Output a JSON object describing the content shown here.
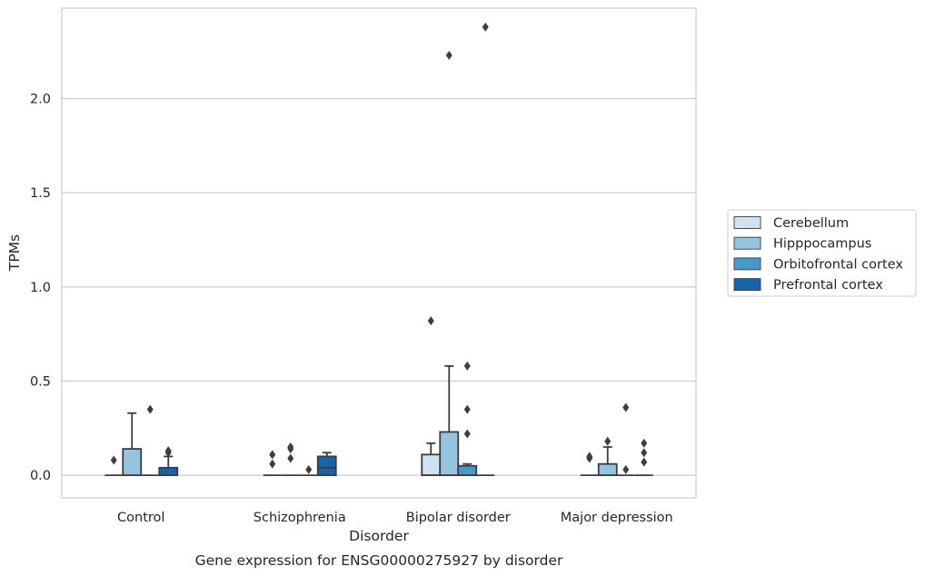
{
  "chart_data": {
    "type": "boxplot",
    "xlabel": "Disorder",
    "ylabel": "TPMs",
    "caption": "Gene expression for ENSG00000275927 by disorder",
    "categories": [
      "Control",
      "Schizophrenia",
      "Bipolar disorder",
      "Major depression"
    ],
    "ylim": [
      -0.12,
      2.48
    ],
    "yticks": [
      0.0,
      0.5,
      1.0,
      1.5,
      2.0
    ],
    "ytick_labels": [
      "0.0",
      "0.5",
      "1.0",
      "1.5",
      "2.0"
    ],
    "grid": "horizontal",
    "legend_placement": "right",
    "series": [
      {
        "name": "Cerebellum",
        "color": "#d0e1f2",
        "boxes": [
          {
            "q1": 0,
            "median": 0,
            "q3": 0,
            "whislo": 0,
            "whishi": 0,
            "fliers": [
              0.08
            ]
          },
          {
            "q1": 0,
            "median": 0,
            "q3": 0,
            "whislo": 0,
            "whishi": 0,
            "fliers": [
              0.06,
              0.11
            ]
          },
          {
            "q1": 0,
            "median": 0,
            "q3": 0.11,
            "whislo": 0,
            "whishi": 0.17,
            "fliers": [
              0.82
            ]
          },
          {
            "q1": 0,
            "median": 0,
            "q3": 0,
            "whislo": 0,
            "whishi": 0,
            "fliers": [
              0.09,
              0.1
            ]
          }
        ]
      },
      {
        "name": "Hipppocampus",
        "color": "#94c4df",
        "boxes": [
          {
            "q1": 0,
            "median": 0,
            "q3": 0.14,
            "whislo": 0,
            "whishi": 0.33,
            "fliers": []
          },
          {
            "q1": 0,
            "median": 0,
            "q3": 0,
            "whislo": 0,
            "whishi": 0,
            "fliers": [
              0.09,
              0.14,
              0.15
            ]
          },
          {
            "q1": 0,
            "median": 0,
            "q3": 0.23,
            "whislo": 0,
            "whishi": 0.58,
            "fliers": [
              2.23
            ]
          },
          {
            "q1": 0,
            "median": 0,
            "q3": 0.06,
            "whislo": 0,
            "whishi": 0.15,
            "fliers": [
              0.18
            ]
          }
        ]
      },
      {
        "name": "Orbitofrontal cortex",
        "color": "#4a98c9",
        "boxes": [
          {
            "q1": 0,
            "median": 0,
            "q3": 0,
            "whislo": 0,
            "whishi": 0,
            "fliers": [
              0.35
            ]
          },
          {
            "q1": 0,
            "median": 0,
            "q3": 0,
            "whislo": 0,
            "whishi": 0,
            "fliers": [
              0.03
            ]
          },
          {
            "q1": 0,
            "median": 0,
            "q3": 0.05,
            "whislo": 0,
            "whishi": 0.06,
            "fliers": [
              0.22,
              0.35,
              0.58
            ]
          },
          {
            "q1": 0,
            "median": 0,
            "q3": 0,
            "whislo": 0,
            "whishi": 0,
            "fliers": [
              0.03,
              0.36
            ]
          }
        ]
      },
      {
        "name": "Prefrontal cortex",
        "color": "#1764ab",
        "boxes": [
          {
            "q1": 0,
            "median": 0,
            "q3": 0.04,
            "whislo": 0,
            "whishi": 0.1,
            "fliers": [
              0.12,
              0.13
            ]
          },
          {
            "q1": 0,
            "median": 0.04,
            "q3": 0.1,
            "whislo": 0,
            "whishi": 0.12,
            "fliers": []
          },
          {
            "q1": 0,
            "median": 0,
            "q3": 0,
            "whislo": 0,
            "whishi": 0,
            "fliers": [
              2.38
            ]
          },
          {
            "q1": 0,
            "median": 0,
            "q3": 0,
            "whislo": 0,
            "whishi": 0,
            "fliers": [
              0.07,
              0.12,
              0.17
            ]
          }
        ]
      }
    ]
  }
}
